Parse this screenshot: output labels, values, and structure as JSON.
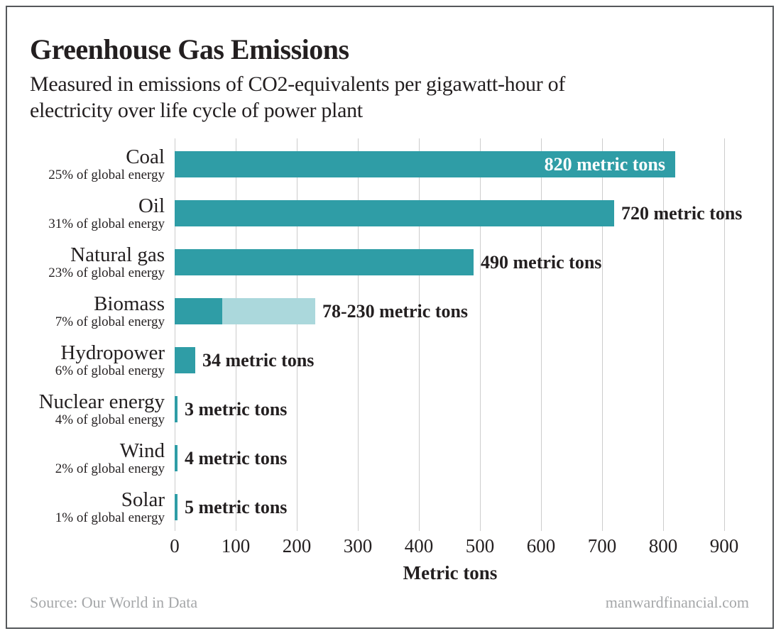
{
  "chart_data": {
    "type": "bar",
    "orientation": "horizontal",
    "title": "Greenhouse Gas Emissions",
    "subtitle_lines": [
      "Measured in emissions of CO2-equivalents per gigawatt-hour of",
      "electricity over life cycle of power plant"
    ],
    "xlabel": "Metric tons",
    "xlim": [
      0,
      900
    ],
    "x_ticks": [
      0,
      100,
      200,
      300,
      400,
      500,
      600,
      700,
      800,
      900
    ],
    "grid": "vertical",
    "bars": [
      {
        "label": "Coal",
        "sublabel": "25% of global energy",
        "value": 820,
        "value_label": "820 metric tons",
        "label_position": "inside"
      },
      {
        "label": "Oil",
        "sublabel": "31% of global energy",
        "value": 720,
        "value_label": "720 metric tons",
        "label_position": "outside"
      },
      {
        "label": "Natural gas",
        "sublabel": "23% of global energy",
        "value": 490,
        "value_label": "490 metric tons",
        "label_position": "outside"
      },
      {
        "label": "Biomass",
        "sublabel": "7% of global energy",
        "value_min": 78,
        "value_max": 230,
        "value_label": "78-230 metric tons",
        "label_position": "outside"
      },
      {
        "label": "Hydropower",
        "sublabel": "6% of global energy",
        "value": 34,
        "value_label": "34 metric tons",
        "label_position": "outside"
      },
      {
        "label": "Nuclear energy",
        "sublabel": "4% of global energy",
        "value": 3,
        "value_label": "3 metric tons",
        "label_position": "outside"
      },
      {
        "label": "Wind",
        "sublabel": "2% of global energy",
        "value": 4,
        "value_label": "4 metric tons",
        "label_position": "outside"
      },
      {
        "label": "Solar",
        "sublabel": "1% of global energy",
        "value": 5,
        "value_label": "5 metric tons",
        "label_position": "outside"
      }
    ]
  },
  "footer": {
    "source": "Source: Our World in Data",
    "website": "manwardfinancial.com"
  },
  "colors": {
    "bar_teal": "#2f9da6",
    "bar_teal_light": "#abd8dc",
    "value_text": "#231f20",
    "value_text_inside": "#ffffff",
    "gridline": "#cccccc",
    "footer_text": "#a5a7a9",
    "frame_border": "#55585b"
  }
}
